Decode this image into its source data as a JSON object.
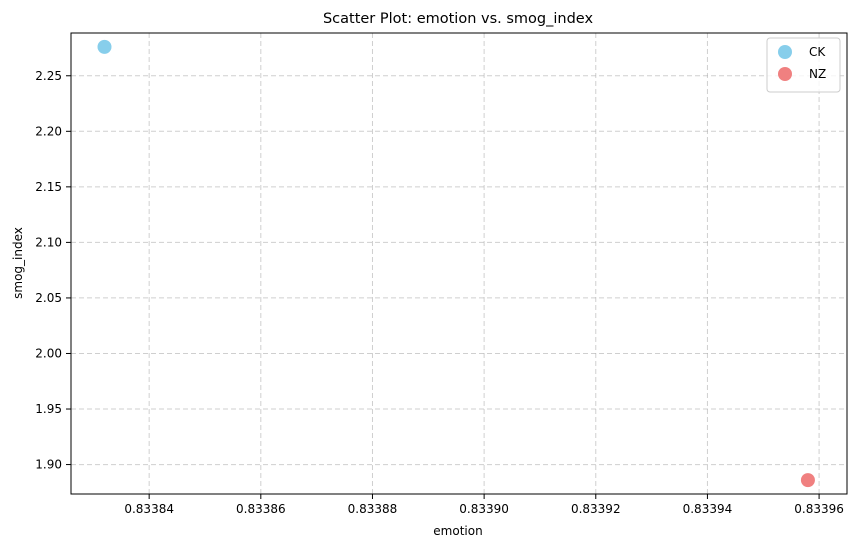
{
  "chart_data": {
    "type": "scatter",
    "title": "Scatter Plot: emotion vs. smog_index",
    "xlabel": "emotion",
    "ylabel": "smog_index",
    "xlim": [
      0.833826,
      0.833965
    ],
    "ylim": [
      1.8735,
      2.2885
    ],
    "xticks": [
      0.83384,
      0.83386,
      0.83388,
      0.8339,
      0.83392,
      0.83394,
      0.83396
    ],
    "xtick_labels": [
      "0.83384",
      "0.83386",
      "0.83388",
      "0.83390",
      "0.83392",
      "0.83394",
      "0.83396"
    ],
    "yticks": [
      1.9,
      1.95,
      2.0,
      2.05,
      2.1,
      2.15,
      2.2,
      2.25
    ],
    "ytick_labels": [
      "1.90",
      "1.95",
      "2.00",
      "2.05",
      "2.10",
      "2.15",
      "2.20",
      "2.25"
    ],
    "grid": true,
    "legend_position": "top-right",
    "series": [
      {
        "name": "CK",
        "color": "#87CEEB",
        "points": [
          {
            "x": 0.833832,
            "y": 2.276
          }
        ]
      },
      {
        "name": "NZ",
        "color": "#F08080",
        "points": [
          {
            "x": 0.833958,
            "y": 1.886
          }
        ]
      }
    ]
  }
}
